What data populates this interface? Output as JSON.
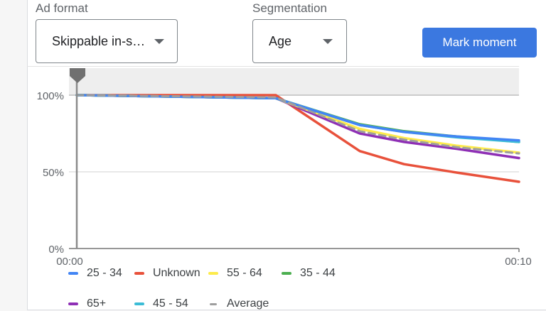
{
  "controls": {
    "ad_format": {
      "label": "Ad format",
      "value": "Skippable in-s…"
    },
    "segmentation": {
      "label": "Segmentation",
      "value": "Age"
    },
    "mark_moment_label": "Mark moment"
  },
  "colors": {
    "accent": "#3b78e0",
    "band": "#eeeeee",
    "marker": "#757575"
  },
  "chart_data": {
    "type": "line",
    "title": "",
    "xlabel": "",
    "ylabel": "",
    "x_tick_labels": [
      "00:00",
      "00:10"
    ],
    "y_tick_labels": [
      "100%",
      "50%",
      "0%"
    ],
    "ylim": [
      0,
      100
    ],
    "x_seconds": [
      0,
      4.5,
      6.4,
      7.4,
      8.6,
      10
    ],
    "series": [
      {
        "name": "25 - 34",
        "color": "#4285f4",
        "dash": false,
        "values": [
          100,
          98,
          80.5,
          76,
          73,
          70.5
        ]
      },
      {
        "name": "Unknown",
        "color": "#e8513b",
        "dash": false,
        "values": [
          100,
          100,
          63.5,
          55,
          49.5,
          43.5
        ]
      },
      {
        "name": "55 - 64",
        "color": "#fdeb4a",
        "dash": false,
        "values": [
          100,
          98,
          78,
          72,
          67,
          62.5
        ]
      },
      {
        "name": "35 - 44",
        "color": "#4caf50",
        "dash": false,
        "values": [
          100,
          98,
          81,
          76.5,
          73,
          69.5
        ]
      },
      {
        "name": "65+",
        "color": "#8e2fb5",
        "dash": false,
        "values": [
          100,
          98,
          75,
          69.5,
          65,
          59
        ]
      },
      {
        "name": "45 - 54",
        "color": "#3bbcd6",
        "dash": false,
        "values": [
          100,
          98,
          80.5,
          76,
          72.5,
          69.5
        ]
      },
      {
        "name": "Average",
        "color": "#9e9e9e",
        "dash": true,
        "values": [
          100,
          98.5,
          76.5,
          71,
          66,
          62
        ]
      }
    ],
    "legend_position": "bottom",
    "grid": true,
    "marker_at": "00:00"
  },
  "legend": {
    "row1": [
      "25 - 34",
      "Unknown",
      "55 - 64",
      "35 - 44"
    ],
    "row2": [
      "65+",
      "45 - 54",
      "Average"
    ]
  }
}
